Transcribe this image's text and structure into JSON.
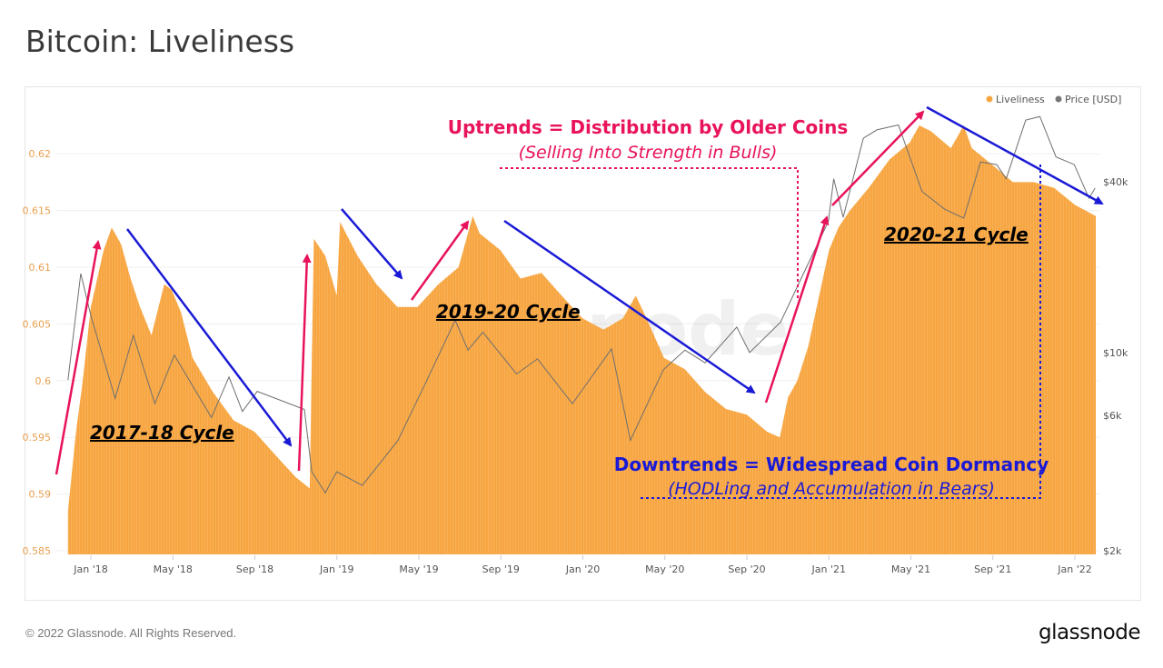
{
  "title": "Bitcoin: Liveliness",
  "footer": "© 2022 Glassnode. All Rights Reserved.",
  "logo": "glassnode",
  "watermark": "glassnode",
  "colors": {
    "liveliness": "#f7a541",
    "price": "#6f6f6f",
    "uptrend": "#e8135b",
    "downtrend": "#1a1ad6"
  },
  "annotations": {
    "uptrend_title": "Uptrends = Distribution by Older Coins",
    "uptrend_sub": "(Selling Into Strength in Bulls)",
    "downtrend_title": "Downtrends = Widespread Coin Dormancy",
    "downtrend_sub": "(HODLing and Accumulation in Bears)",
    "cycle1": "2017-18 Cycle",
    "cycle2": "2019-20 Cycle",
    "cycle3": "2020-21 Cycle"
  },
  "chart_data": {
    "type": "area",
    "title": "Bitcoin: Liveliness",
    "legend": [
      "Liveliness",
      "Price [USD]"
    ],
    "legend_position": "top-right",
    "grid": true,
    "x_ticks": [
      "Jan '18",
      "May '18",
      "Sep '18",
      "Jan '19",
      "May '19",
      "Sep '19",
      "Jan '20",
      "May '20",
      "Sep '20",
      "Jan '21",
      "May '21",
      "Sep '21",
      "Jan '22"
    ],
    "y_left": {
      "ticks": [
        "0.585",
        "0.59",
        "0.595",
        "0.6",
        "0.605",
        "0.61",
        "0.615",
        "0.62"
      ],
      "range": [
        0.585,
        0.6235
      ]
    },
    "y_right": {
      "scale": "log",
      "ticks": [
        "$2k",
        "$6k",
        "$10k",
        "$40k"
      ],
      "tick_values": [
        2000,
        6000,
        10000,
        40000
      ]
    },
    "series": [
      {
        "name": "Liveliness",
        "type": "area",
        "points": [
          [
            "2017-11-28",
            0.5885
          ],
          [
            "2017-12-10",
            0.5955
          ],
          [
            "2017-12-20",
            0.6
          ],
          [
            "2018-01-01",
            0.6065
          ],
          [
            "2018-01-20",
            0.6115
          ],
          [
            "2018-02-01",
            0.6135
          ],
          [
            "2018-02-15",
            0.612
          ],
          [
            "2018-03-01",
            0.609
          ],
          [
            "2018-03-15",
            0.6065
          ],
          [
            "2018-04-01",
            0.604
          ],
          [
            "2018-04-20",
            0.6085
          ],
          [
            "2018-05-01",
            0.608
          ],
          [
            "2018-05-15",
            0.606
          ],
          [
            "2018-06-01",
            0.602
          ],
          [
            "2018-07-01",
            0.599
          ],
          [
            "2018-08-01",
            0.5965
          ],
          [
            "2018-09-01",
            0.5955
          ],
          [
            "2018-10-01",
            0.5935
          ],
          [
            "2018-11-01",
            0.5915
          ],
          [
            "2018-11-22",
            0.5905
          ],
          [
            "2018-11-28",
            0.6125
          ],
          [
            "2018-12-15",
            0.611
          ],
          [
            "2019-01-01",
            0.6075
          ],
          [
            "2019-01-06",
            0.614
          ],
          [
            "2019-02-01",
            0.611
          ],
          [
            "2019-03-01",
            0.6085
          ],
          [
            "2019-04-01",
            0.6065
          ],
          [
            "2019-05-01",
            0.6065
          ],
          [
            "2019-06-01",
            0.6085
          ],
          [
            "2019-07-01",
            0.61
          ],
          [
            "2019-07-22",
            0.6145
          ],
          [
            "2019-08-01",
            0.613
          ],
          [
            "2019-09-01",
            0.6115
          ],
          [
            "2019-10-01",
            0.609
          ],
          [
            "2019-11-01",
            0.6095
          ],
          [
            "2019-12-01",
            0.6075
          ],
          [
            "2020-01-01",
            0.6055
          ],
          [
            "2020-02-01",
            0.6045
          ],
          [
            "2020-03-01",
            0.6055
          ],
          [
            "2020-03-20",
            0.6075
          ],
          [
            "2020-04-01",
            0.606
          ],
          [
            "2020-05-01",
            0.602
          ],
          [
            "2020-06-01",
            0.601
          ],
          [
            "2020-07-01",
            0.599
          ],
          [
            "2020-08-01",
            0.5975
          ],
          [
            "2020-09-01",
            0.597
          ],
          [
            "2020-10-01",
            0.5955
          ],
          [
            "2020-10-20",
            0.595
          ],
          [
            "2020-11-01",
            0.5985
          ],
          [
            "2020-11-15",
            0.6
          ],
          [
            "2020-12-01",
            0.603
          ],
          [
            "2021-01-01",
            0.6115
          ],
          [
            "2021-01-15",
            0.6135
          ],
          [
            "2021-02-01",
            0.615
          ],
          [
            "2021-03-01",
            0.617
          ],
          [
            "2021-04-01",
            0.6195
          ],
          [
            "2021-05-01",
            0.621
          ],
          [
            "2021-05-15",
            0.6225
          ],
          [
            "2021-06-01",
            0.622
          ],
          [
            "2021-07-01",
            0.6205
          ],
          [
            "2021-07-20",
            0.6225
          ],
          [
            "2021-08-01",
            0.6205
          ],
          [
            "2021-09-01",
            0.619
          ],
          [
            "2021-10-01",
            0.6175
          ],
          [
            "2021-11-01",
            0.6175
          ],
          [
            "2021-12-01",
            0.617
          ],
          [
            "2022-01-01",
            0.6155
          ],
          [
            "2022-02-01",
            0.6145
          ]
        ]
      },
      {
        "name": "Price [USD]",
        "type": "line",
        "points": [
          [
            "2017-11-28",
            8000
          ],
          [
            "2017-12-17",
            19000
          ],
          [
            "2018-01-01",
            13500
          ],
          [
            "2018-02-06",
            6900
          ],
          [
            "2018-03-05",
            11500
          ],
          [
            "2018-04-06",
            6600
          ],
          [
            "2018-05-05",
            9800
          ],
          [
            "2018-06-29",
            5900
          ],
          [
            "2018-07-25",
            8200
          ],
          [
            "2018-08-14",
            6200
          ],
          [
            "2018-09-05",
            7300
          ],
          [
            "2018-11-14",
            6300
          ],
          [
            "2018-11-25",
            3800
          ],
          [
            "2018-12-15",
            3200
          ],
          [
            "2019-01-01",
            3800
          ],
          [
            "2019-02-08",
            3400
          ],
          [
            "2019-04-02",
            4900
          ],
          [
            "2019-05-15",
            8000
          ],
          [
            "2019-06-26",
            13000
          ],
          [
            "2019-07-15",
            10200
          ],
          [
            "2019-08-06",
            11800
          ],
          [
            "2019-09-25",
            8400
          ],
          [
            "2019-10-26",
            9500
          ],
          [
            "2019-12-17",
            6600
          ],
          [
            "2020-02-13",
            10300
          ],
          [
            "2020-03-12",
            4900
          ],
          [
            "2020-04-30",
            8700
          ],
          [
            "2020-06-01",
            10200
          ],
          [
            "2020-07-01",
            9200
          ],
          [
            "2020-08-17",
            12300
          ],
          [
            "2020-09-05",
            10000
          ],
          [
            "2020-10-21",
            12800
          ],
          [
            "2020-11-24",
            19000
          ],
          [
            "2020-12-31",
            29000
          ],
          [
            "2021-01-08",
            41000
          ],
          [
            "2021-01-22",
            30000
          ],
          [
            "2021-02-21",
            57000
          ],
          [
            "2021-03-13",
            61000
          ],
          [
            "2021-04-14",
            63500
          ],
          [
            "2021-05-19",
            37000
          ],
          [
            "2021-06-22",
            32000
          ],
          [
            "2021-07-20",
            29800
          ],
          [
            "2021-08-14",
            47000
          ],
          [
            "2021-09-07",
            46000
          ],
          [
            "2021-09-21",
            41000
          ],
          [
            "2021-10-20",
            66000
          ],
          [
            "2021-11-10",
            68000
          ],
          [
            "2021-12-04",
            49000
          ],
          [
            "2021-12-31",
            46000
          ],
          [
            "2022-01-22",
            35000
          ],
          [
            "2022-01-31",
            38000
          ]
        ]
      }
    ]
  }
}
